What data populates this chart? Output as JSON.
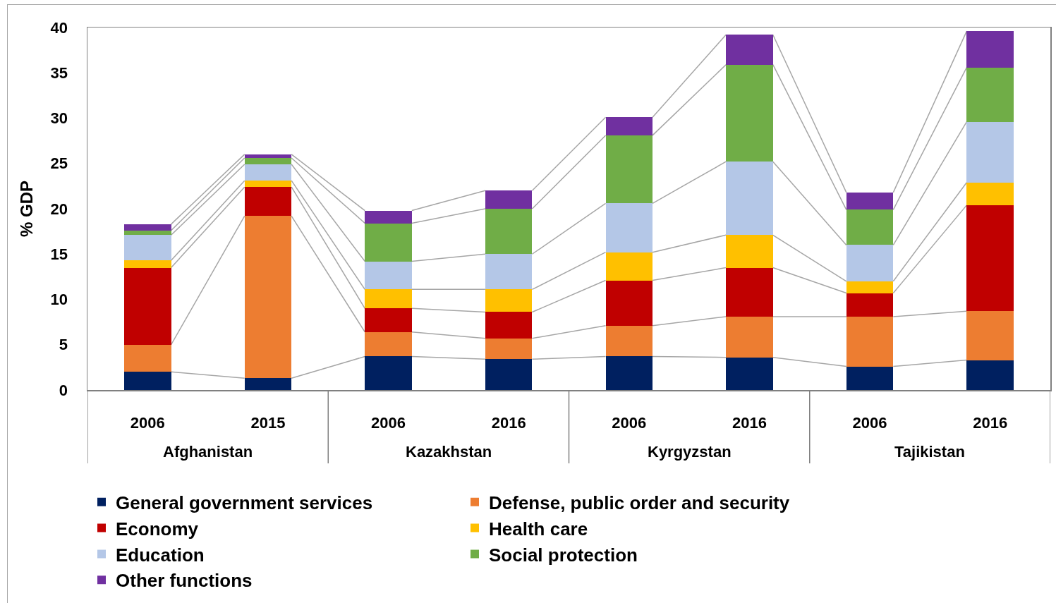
{
  "chart_data": {
    "type": "bar",
    "stacked": true,
    "ylabel": "% GDP",
    "categories": [
      "2006",
      "2015",
      "2006",
      "2016",
      "2006",
      "2016",
      "2006",
      "2016"
    ],
    "annotations": [
      "Afghanistan",
      "Kazakhstan",
      "Kyrgyzstan",
      "Tajikistan"
    ],
    "ylim": [
      0,
      40
    ],
    "yticks": [
      0,
      5,
      10,
      15,
      20,
      25,
      30,
      35,
      40
    ],
    "grid": false,
    "legend": "bottom",
    "series": [
      {
        "name": "General government services",
        "color": "#002060",
        "values": [
          2.0,
          1.3,
          3.7,
          3.4,
          3.7,
          3.6,
          2.6,
          3.3
        ]
      },
      {
        "name": "Defense, public order and security",
        "color": "#ed7d31",
        "values": [
          3.0,
          17.9,
          2.7,
          2.3,
          3.4,
          4.5,
          5.5,
          5.4
        ]
      },
      {
        "name": "Economy",
        "color": "#c00000",
        "values": [
          8.5,
          3.2,
          2.6,
          2.9,
          5.0,
          5.4,
          2.6,
          11.7
        ]
      },
      {
        "name": "Health care",
        "color": "#ffc000",
        "values": [
          0.8,
          0.7,
          2.1,
          2.5,
          3.1,
          3.6,
          1.3,
          2.5
        ]
      },
      {
        "name": "Education",
        "color": "#b4c7e7",
        "values": [
          2.8,
          1.8,
          3.1,
          3.9,
          5.4,
          8.1,
          4.0,
          6.7
        ]
      },
      {
        "name": "Social protection",
        "color": "#70ad47",
        "values": [
          0.5,
          0.7,
          4.2,
          5.0,
          7.5,
          10.7,
          3.9,
          6.0
        ]
      },
      {
        "name": "Other functions",
        "color": "#7030a0",
        "values": [
          0.7,
          0.4,
          1.4,
          2.0,
          2.0,
          3.3,
          1.9,
          4.0
        ]
      }
    ]
  }
}
